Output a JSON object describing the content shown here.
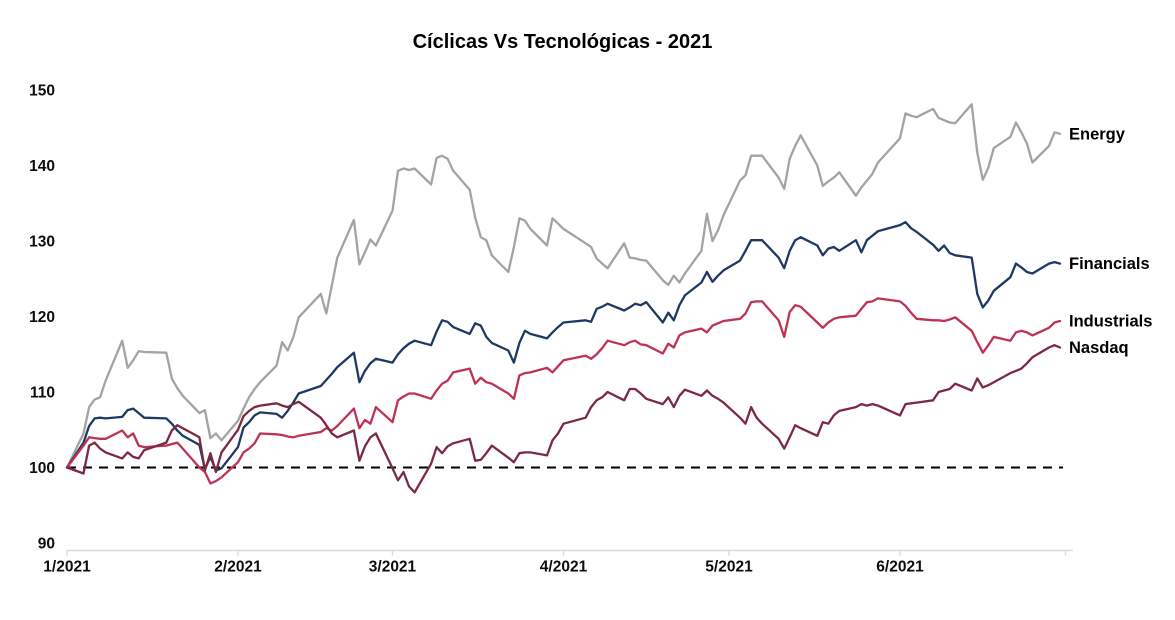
{
  "chart_data": {
    "type": "line",
    "title": "Cíclicas Vs Tecnológicas - 2021",
    "grid": false,
    "legend_position": "right-end-labels",
    "colors": {
      "axis_line": "#d9d9d9",
      "tick_text": "#0d0d0d",
      "baseline": "#000000",
      "label_text": "#000000"
    },
    "y_axis": {
      "range": [
        90,
        150
      ],
      "ticks": [
        150,
        140,
        130,
        120,
        110,
        100,
        90
      ],
      "tick_labels": [
        "150",
        "140",
        "130",
        "120",
        "110",
        "100",
        "90"
      ]
    },
    "x_axis": {
      "range_doy": [
        1,
        181
      ],
      "tick_doys": [
        1,
        32,
        60,
        91,
        121,
        152,
        182
      ],
      "tick_labels": [
        "1/2021",
        "2/2021",
        "3/2021",
        "4/2021",
        "5/2021",
        "6/2021"
      ]
    },
    "baseline": {
      "value": 100,
      "style": "dashed"
    },
    "x_doy": [
      1,
      4,
      5,
      6,
      7,
      8,
      11,
      12,
      13,
      14,
      15,
      19,
      20,
      21,
      22,
      25,
      26,
      27,
      28,
      29,
      32,
      33,
      34,
      35,
      36,
      39,
      40,
      41,
      42,
      43,
      47,
      48,
      49,
      50,
      53,
      54,
      55,
      56,
      57,
      60,
      61,
      62,
      63,
      64,
      67,
      68,
      69,
      70,
      71,
      74,
      75,
      76,
      77,
      78,
      81,
      82,
      83,
      84,
      85,
      88,
      89,
      90,
      91,
      95,
      96,
      97,
      98,
      99,
      102,
      103,
      104,
      105,
      106,
      109,
      110,
      111,
      112,
      113,
      116,
      117,
      118,
      119,
      120,
      123,
      124,
      125,
      126,
      127,
      130,
      131,
      132,
      133,
      134,
      137,
      138,
      139,
      140,
      141,
      144,
      145,
      146,
      147,
      148,
      152,
      153,
      154,
      155,
      158,
      159,
      160,
      161,
      162,
      165,
      166,
      167,
      168,
      169,
      172,
      173,
      174,
      175,
      176,
      179,
      180,
      181
    ],
    "series": [
      {
        "name": "Energy",
        "color": "#a3a3a3",
        "values": [
          100,
          104.5,
          108,
          109,
          109.3,
          111.5,
          116.8,
          113.2,
          114.2,
          115.4,
          115.3,
          115.2,
          111.8,
          110.5,
          109.5,
          107.2,
          107.6,
          103.9,
          104.5,
          103.6,
          106.2,
          107.8,
          109.3,
          110.4,
          111.3,
          113.5,
          116.6,
          115.5,
          117.2,
          119.9,
          123,
          120.4,
          124.1,
          127.8,
          132.8,
          126.9,
          128.5,
          130.2,
          129.4,
          134,
          139.3,
          139.6,
          139.4,
          139.6,
          137.5,
          141,
          141.3,
          140.9,
          139.3,
          136.8,
          133.1,
          130.5,
          130.1,
          128.1,
          125.9,
          129.2,
          133,
          132.7,
          131.6,
          129.4,
          133,
          132.3,
          131.6,
          129.7,
          129.2,
          127.7,
          127,
          126.4,
          129.7,
          127.8,
          127.7,
          127.5,
          127.4,
          124.8,
          124.2,
          125.4,
          124.5,
          125.7,
          128.7,
          133.6,
          130,
          131.4,
          133.4,
          138,
          138.7,
          141.3,
          141.3,
          141.3,
          138.4,
          136.9,
          140.9,
          142.6,
          144,
          140,
          137.3,
          137.9,
          138.4,
          139.1,
          136,
          137.1,
          138,
          138.9,
          140.4,
          143.6,
          146.9,
          146.6,
          146.4,
          147.5,
          146.3,
          146,
          145.7,
          145.6,
          148.1,
          141.7,
          138.1,
          139.7,
          142.3,
          143.8,
          145.7,
          144.4,
          142.9,
          140.4,
          142.6,
          144.4,
          144.2
        ]
      },
      {
        "name": "Financials",
        "color": "#1f3864",
        "values": [
          100,
          103.3,
          105.5,
          106.5,
          106.6,
          106.5,
          106.7,
          107.6,
          107.8,
          107.2,
          106.6,
          106.5,
          105.8,
          104.9,
          104.2,
          103,
          99.8,
          101.4,
          99.6,
          99.9,
          102.7,
          105.3,
          106,
          106.9,
          107.3,
          107.1,
          106.6,
          107.5,
          108.6,
          109.8,
          110.8,
          111.6,
          112.4,
          113.3,
          115.2,
          111.3,
          112.8,
          113.8,
          114.4,
          113.9,
          115,
          115.8,
          116.4,
          116.8,
          116.2,
          118,
          119.5,
          119.3,
          118.6,
          117.7,
          119.1,
          118.8,
          117.3,
          116.5,
          115.5,
          113.9,
          116.5,
          118.1,
          117.7,
          117.1,
          117.9,
          118.6,
          119.2,
          119.5,
          119.3,
          121,
          121.3,
          121.7,
          120.8,
          121.2,
          121.7,
          121.5,
          121.9,
          119.2,
          120.5,
          119.5,
          121.5,
          122.8,
          124.5,
          125.9,
          124.6,
          125.4,
          126.1,
          127.4,
          128.7,
          130.1,
          130.1,
          130.1,
          127.8,
          126.4,
          128.7,
          130.1,
          130.5,
          129.4,
          128.1,
          129,
          129.2,
          128.7,
          130.1,
          128.5,
          130.1,
          130.7,
          131.3,
          132.1,
          132.5,
          131.7,
          131.2,
          129.5,
          128.7,
          129.4,
          128.4,
          128.1,
          127.8,
          123,
          121.2,
          122.1,
          123.4,
          125.2,
          127,
          126.5,
          125.9,
          125.7,
          127,
          127.2,
          127
        ]
      },
      {
        "name": "Industrials",
        "color": "#be3355",
        "values": [
          100,
          102.9,
          104,
          103.9,
          103.8,
          103.8,
          104.9,
          104,
          104.5,
          102.9,
          102.7,
          102.9,
          103.1,
          103.3,
          102.5,
          100,
          99.4,
          97.9,
          98.2,
          98.7,
          100.7,
          102,
          102.5,
          103.2,
          104.5,
          104.4,
          104.3,
          104.1,
          104,
          104.2,
          104.7,
          105.2,
          104.9,
          105.5,
          107.8,
          105.2,
          106.3,
          105.8,
          108,
          106,
          108.9,
          109.4,
          109.8,
          109.8,
          109.1,
          110.2,
          111.1,
          111.5,
          112.6,
          113.1,
          111.1,
          111.9,
          111.3,
          111.1,
          109.8,
          109.1,
          112.2,
          112.5,
          112.6,
          113.2,
          112.6,
          113.4,
          114.2,
          114.8,
          114.4,
          115,
          115.8,
          116.8,
          116.2,
          116.6,
          116.8,
          116.3,
          116.2,
          115.1,
          116.4,
          115.9,
          117.5,
          117.9,
          118.4,
          117.9,
          118.8,
          119.1,
          119.4,
          119.7,
          120.4,
          121.9,
          122,
          122,
          119.5,
          117.3,
          120.6,
          121.5,
          121.3,
          119.2,
          118.5,
          119.2,
          119.7,
          119.9,
          120.1,
          121,
          121.9,
          122,
          122.4,
          122,
          121.4,
          120.5,
          119.7,
          119.5,
          119.5,
          119.4,
          119.6,
          119.9,
          118.1,
          116.6,
          115.2,
          116.2,
          117.3,
          116.8,
          117.9,
          118.1,
          117.9,
          117.5,
          118.5,
          119.2,
          119.4
        ]
      },
      {
        "name": "Nasdaq",
        "color": "#7c2a40",
        "values": [
          100,
          99.2,
          102.9,
          103.3,
          102.5,
          102,
          101.2,
          102,
          101.4,
          101.2,
          102.3,
          103.3,
          104.9,
          105.6,
          105.2,
          104,
          99.6,
          101.9,
          99.4,
          102,
          105,
          106.8,
          107.5,
          108,
          108.2,
          108.5,
          108.2,
          108,
          108.4,
          108.7,
          106.6,
          105.6,
          104.5,
          104,
          104.9,
          100.9,
          102.8,
          104,
          104.5,
          99.9,
          98.3,
          99.4,
          97.5,
          96.7,
          100.5,
          102.7,
          101.9,
          102.8,
          103.2,
          103.8,
          100.9,
          101,
          101.9,
          102.9,
          101.3,
          100.7,
          101.9,
          102,
          102,
          101.6,
          103.6,
          104.5,
          105.8,
          106.6,
          108,
          108.9,
          109.3,
          110,
          108.9,
          110.4,
          110.4,
          109.8,
          109.1,
          108.4,
          109.3,
          108,
          109.5,
          110.3,
          109.5,
          110.2,
          109.5,
          109.1,
          108.6,
          106.6,
          105.8,
          108,
          106.6,
          105.8,
          103.8,
          102.5,
          104,
          105.6,
          105.2,
          104.2,
          106,
          105.8,
          106.9,
          107.5,
          108,
          108.4,
          108.2,
          108.4,
          108.2,
          106.9,
          108.4,
          108.5,
          108.6,
          108.9,
          110,
          110.2,
          110.4,
          111.1,
          110.2,
          111.8,
          110.6,
          110.9,
          111.3,
          112.5,
          112.8,
          113.1,
          113.8,
          114.6,
          115.9,
          116.2,
          115.9
        ]
      }
    ]
  }
}
